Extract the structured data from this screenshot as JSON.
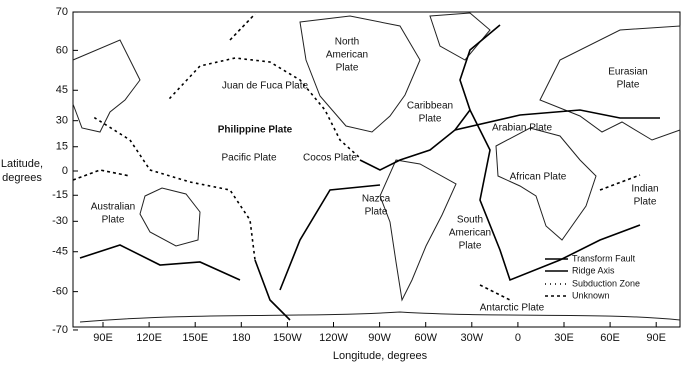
{
  "map": {
    "plates": [
      {
        "lines": [
          "Juan de Fuca Plate"
        ]
      },
      {
        "lines": [
          "North",
          "American",
          "Plate"
        ]
      },
      {
        "lines": [
          "Philippine Plate"
        ]
      },
      {
        "lines": [
          "Pacific Plate"
        ]
      },
      {
        "lines": [
          "Cocos Plate"
        ]
      },
      {
        "lines": [
          "Caribbean",
          "Plate"
        ]
      },
      {
        "lines": [
          "Eurasian",
          "Plate"
        ]
      },
      {
        "lines": [
          "Arabian Plate"
        ]
      },
      {
        "lines": [
          "African Plate"
        ]
      },
      {
        "lines": [
          "Indian",
          "Plate"
        ]
      },
      {
        "lines": [
          "Australian",
          "Plate"
        ]
      },
      {
        "lines": [
          "Nazca",
          "Plate"
        ]
      },
      {
        "lines": [
          "South",
          "American",
          "Plate"
        ]
      },
      {
        "lines": [
          "Antarctic Plate"
        ]
      }
    ],
    "y_axis": {
      "label": [
        "Latitude,",
        "degrees"
      ],
      "ticks": [
        70,
        60,
        45,
        30,
        15,
        0,
        -15,
        -30,
        -45,
        -60,
        -70
      ]
    },
    "x_axis": {
      "label": "Longitude, degrees",
      "ticks": [
        "90E",
        "120E",
        "150E",
        "180",
        "150W",
        "120W",
        "90W",
        "60W",
        "30W",
        "0",
        "30E",
        "60E",
        "90E"
      ]
    },
    "legend": [
      "Transform Fault",
      "Ridge Axis",
      "Subduction Zone",
      "Unknown"
    ]
  }
}
